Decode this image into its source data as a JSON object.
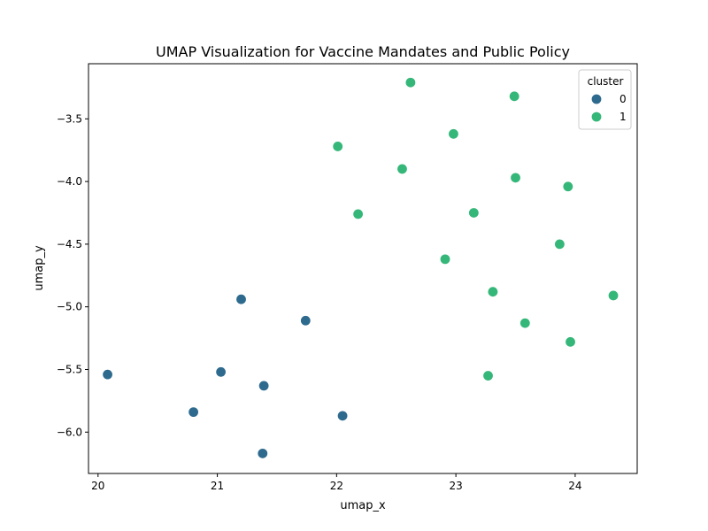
{
  "chart_data": {
    "type": "scatter",
    "title": "UMAP Visualization for Vaccine Mandates and Public Policy",
    "xlabel": "umap_x",
    "ylabel": "umap_y",
    "xlim": [
      19.92,
      24.52
    ],
    "ylim": [
      -6.33,
      -3.06
    ],
    "xticks": [
      20,
      21,
      22,
      23,
      24
    ],
    "yticks": [
      -3.5,
      -4.0,
      -4.5,
      -5.0,
      -5.5,
      -6.0
    ],
    "xtick_labels": [
      "20",
      "21",
      "22",
      "23",
      "24"
    ],
    "ytick_labels": [
      "−3.5",
      "−4.0",
      "−4.5",
      "−5.0",
      "−5.5",
      "−6.0"
    ],
    "grid": false,
    "legend": {
      "title": "cluster",
      "placement": "top-right",
      "entries": [
        {
          "label": "0",
          "color": "#2e6a8e"
        },
        {
          "label": "1",
          "color": "#35b779"
        }
      ]
    },
    "series": [
      {
        "name": "0",
        "color": "#2e6a8e",
        "points": [
          [
            21.2,
            -4.94
          ],
          [
            21.74,
            -5.11
          ],
          [
            20.08,
            -5.54
          ],
          [
            21.03,
            -5.52
          ],
          [
            21.39,
            -5.63
          ],
          [
            20.8,
            -5.84
          ],
          [
            22.05,
            -5.87
          ],
          [
            21.38,
            -6.17
          ]
        ]
      },
      {
        "name": "1",
        "color": "#35b779",
        "points": [
          [
            22.62,
            -3.21
          ],
          [
            23.49,
            -3.32
          ],
          [
            22.98,
            -3.62
          ],
          [
            22.01,
            -3.72
          ],
          [
            22.55,
            -3.9
          ],
          [
            23.5,
            -3.97
          ],
          [
            23.94,
            -4.04
          ],
          [
            22.18,
            -4.26
          ],
          [
            23.15,
            -4.25
          ],
          [
            23.87,
            -4.5
          ],
          [
            22.91,
            -4.62
          ],
          [
            23.31,
            -4.88
          ],
          [
            24.32,
            -4.91
          ],
          [
            23.58,
            -5.13
          ],
          [
            23.96,
            -5.28
          ],
          [
            23.27,
            -5.55
          ]
        ]
      }
    ]
  }
}
